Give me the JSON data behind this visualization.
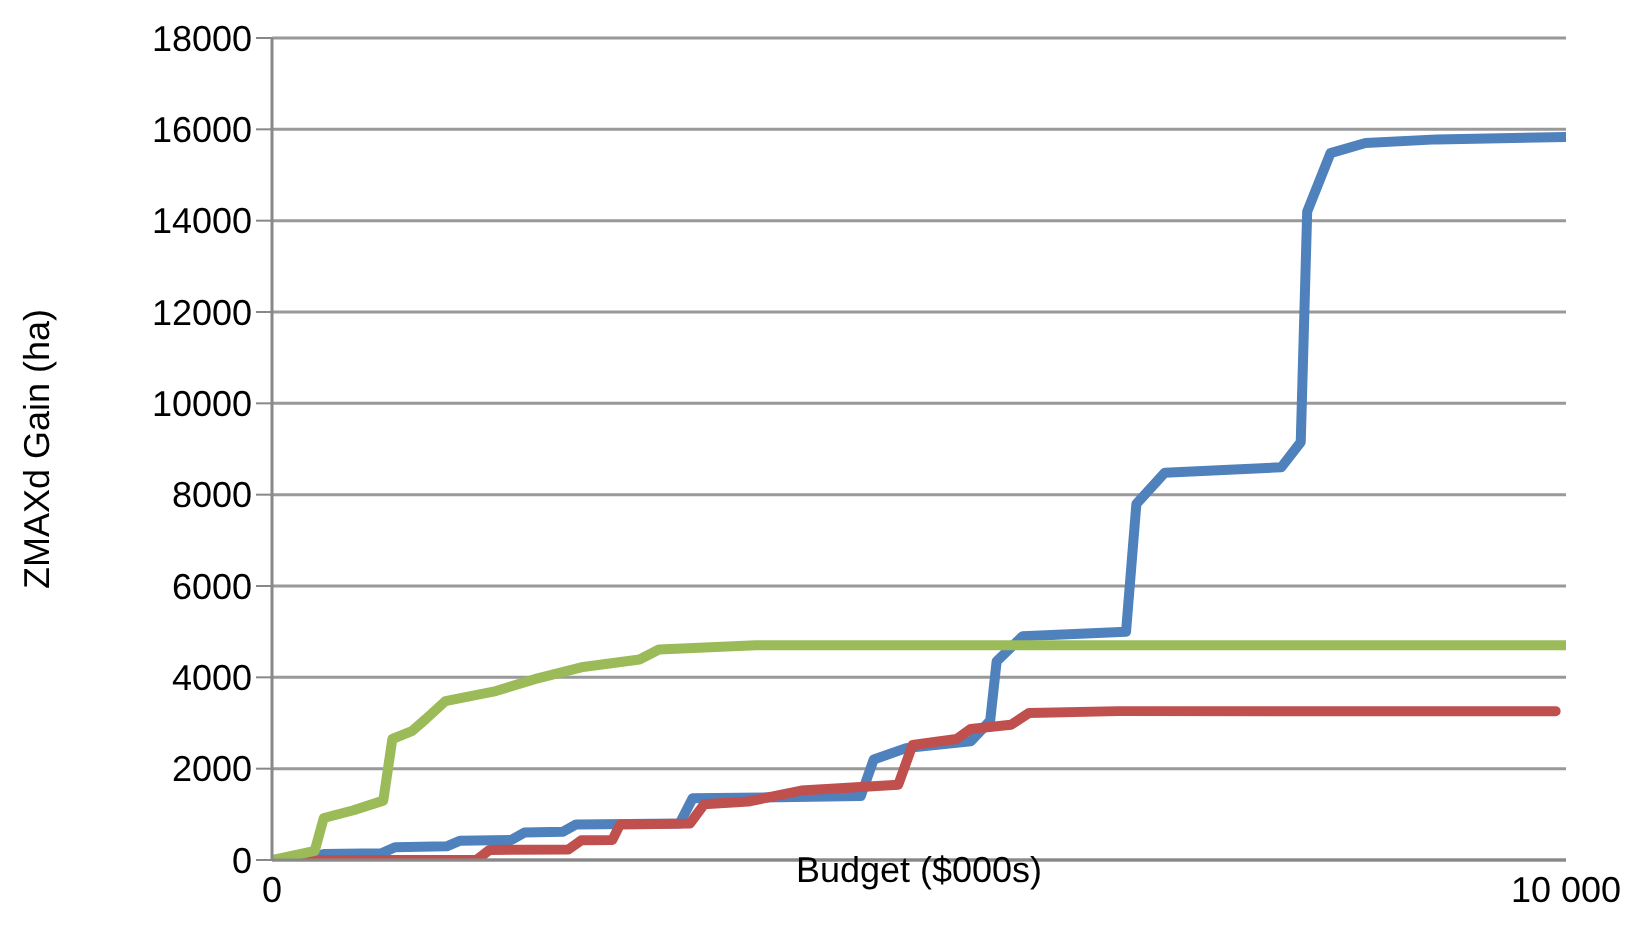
{
  "chart_data": {
    "type": "line",
    "xlabel": "Budget ($000s)",
    "ylabel": "ZMAXd Gain (ha)",
    "xlim": [
      0,
      10000
    ],
    "xticks": [
      0,
      {
        "value": 10000,
        "label": "10 000"
      }
    ],
    "ylim": [
      0,
      18000
    ],
    "yticks": [
      0,
      2000,
      4000,
      6000,
      8000,
      10000,
      12000,
      14000,
      16000,
      18000
    ],
    "grid": "y",
    "marker": "none",
    "line_style": "solid",
    "series": [
      {
        "color": "#4f81bd",
        "x": [
          0,
          300,
          400,
          850,
          950,
          1350,
          1450,
          1850,
          1950,
          2250,
          2350,
          3150,
          3250,
          4550,
          4650,
          4900,
          5400,
          5550,
          5600,
          5800,
          6600,
          6680,
          6900,
          7800,
          7950,
          8000,
          8180,
          8450,
          9000,
          10000
        ],
        "values": [
          0,
          60,
          130,
          150,
          280,
          300,
          420,
          440,
          600,
          620,
          780,
          800,
          1350,
          1400,
          2200,
          2450,
          2600,
          3050,
          4350,
          4900,
          5000,
          7800,
          8480,
          8600,
          9150,
          14200,
          15480,
          15700,
          15780,
          15830
        ]
      },
      {
        "color": "#c0504d",
        "x": [
          0,
          1580,
          1680,
          2290,
          2390,
          2630,
          2690,
          3230,
          3340,
          3680,
          4090,
          4840,
          4950,
          5290,
          5400,
          5710,
          5850,
          6540,
          9920
        ],
        "values": [
          0,
          0,
          220,
          230,
          430,
          440,
          780,
          800,
          1220,
          1280,
          1520,
          1650,
          2520,
          2650,
          2870,
          2960,
          3220,
          3260,
          3260
        ]
      },
      {
        "color": "#9bbb59",
        "x": [
          0,
          330,
          400,
          630,
          860,
          930,
          1080,
          1190,
          1340,
          1730,
          2030,
          2390,
          2840,
          2990,
          3740,
          10000
        ],
        "values": [
          0,
          200,
          920,
          1090,
          1300,
          2650,
          2820,
          3090,
          3480,
          3700,
          3960,
          4220,
          4390,
          4610,
          4700,
          4700
        ]
      }
    ]
  }
}
